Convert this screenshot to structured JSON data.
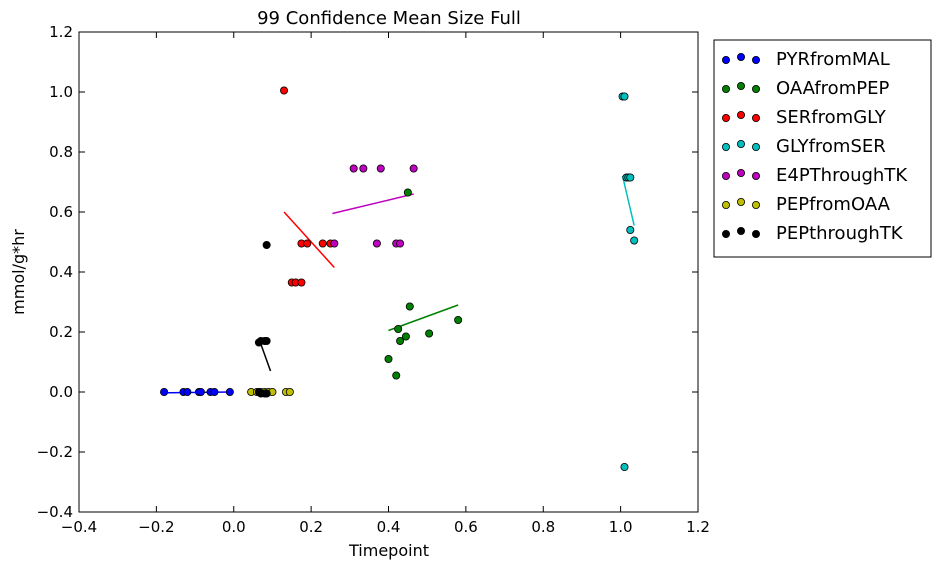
{
  "chart_data": {
    "type": "scatter",
    "title": "99 Confidence Mean Size Full",
    "xlabel": "Timepoint",
    "ylabel": "mmol/g*hr",
    "xlim": [
      -0.4,
      1.2
    ],
    "ylim": [
      -0.4,
      1.2
    ],
    "xticks": [
      "−0.4",
      "−0.2",
      "0.0",
      "0.2",
      "0.4",
      "0.6",
      "0.8",
      "1.0",
      "1.2"
    ],
    "yticks": [
      "−0.4",
      "−0.2",
      "0.0",
      "0.2",
      "0.4",
      "0.6",
      "0.8",
      "1.0",
      "1.2"
    ],
    "grid": false,
    "legend_position": "outside-right",
    "series": [
      {
        "name": "PYRfromMAL",
        "color": "#0000ff",
        "points": [
          [
            -0.18,
            0.0
          ],
          [
            -0.13,
            0.0
          ],
          [
            -0.12,
            0.0
          ],
          [
            -0.09,
            0.0
          ],
          [
            -0.085,
            0.0
          ],
          [
            -0.06,
            0.0
          ],
          [
            -0.05,
            0.0
          ],
          [
            -0.01,
            0.0
          ]
        ],
        "fit": [
          [
            -0.19,
            -0.003
          ],
          [
            -0.01,
            0.0
          ]
        ]
      },
      {
        "name": "OAAfromPEP",
        "color": "#008000",
        "points": [
          [
            0.4,
            0.11
          ],
          [
            0.42,
            0.055
          ],
          [
            0.425,
            0.21
          ],
          [
            0.43,
            0.17
          ],
          [
            0.445,
            0.185
          ],
          [
            0.45,
            0.665
          ],
          [
            0.455,
            0.285
          ],
          [
            0.505,
            0.195
          ],
          [
            0.58,
            0.24
          ]
        ],
        "fit": [
          [
            0.4,
            0.205
          ],
          [
            0.58,
            0.29
          ]
        ]
      },
      {
        "name": "SERfromGLY",
        "color": "#ff0000",
        "points": [
          [
            0.13,
            1.005
          ],
          [
            0.15,
            0.365
          ],
          [
            0.16,
            0.365
          ],
          [
            0.175,
            0.365
          ],
          [
            0.175,
            0.495
          ],
          [
            0.19,
            0.495
          ],
          [
            0.23,
            0.495
          ],
          [
            0.25,
            0.495
          ]
        ],
        "fit": [
          [
            0.13,
            0.6
          ],
          [
            0.26,
            0.415
          ]
        ]
      },
      {
        "name": "GLYfromSER",
        "color": "#00bfbf",
        "points": [
          [
            1.005,
            0.985
          ],
          [
            1.01,
            0.985
          ],
          [
            1.015,
            0.715
          ],
          [
            1.02,
            0.715
          ],
          [
            1.025,
            0.715
          ],
          [
            1.025,
            0.54
          ],
          [
            1.035,
            0.505
          ],
          [
            1.01,
            -0.25
          ]
        ],
        "fit": [
          [
            1.005,
            0.72
          ],
          [
            1.035,
            0.555
          ]
        ]
      },
      {
        "name": "E4PThroughTK",
        "color": "#bf00bf",
        "points": [
          [
            0.31,
            0.745
          ],
          [
            0.335,
            0.745
          ],
          [
            0.38,
            0.745
          ],
          [
            0.465,
            0.745
          ],
          [
            0.26,
            0.495
          ],
          [
            0.37,
            0.495
          ],
          [
            0.42,
            0.495
          ],
          [
            0.43,
            0.495
          ]
        ],
        "fit": [
          [
            0.255,
            0.595
          ],
          [
            0.465,
            0.66
          ]
        ]
      },
      {
        "name": "PEPfromOAA",
        "color": "#bfbf00",
        "points": [
          [
            0.045,
            0.0
          ],
          [
            0.06,
            0.0
          ],
          [
            0.07,
            0.0
          ],
          [
            0.08,
            0.0
          ],
          [
            0.09,
            0.0
          ],
          [
            0.1,
            0.0
          ],
          [
            0.135,
            0.0
          ],
          [
            0.145,
            0.0
          ]
        ],
        "fit": [
          [
            0.06,
            -0.005
          ],
          [
            0.1,
            0.0
          ]
        ]
      },
      {
        "name": "PEPthroughTK",
        "color": "#000000",
        "points": [
          [
            0.085,
            0.49
          ],
          [
            0.065,
            0.165
          ],
          [
            0.07,
            0.17
          ],
          [
            0.08,
            0.17
          ],
          [
            0.085,
            0.17
          ],
          [
            0.065,
            0.0
          ],
          [
            0.07,
            -0.005
          ],
          [
            0.08,
            -0.005
          ],
          [
            0.085,
            -0.005
          ]
        ],
        "fit": [
          [
            0.07,
            0.16
          ],
          [
            0.095,
            0.07
          ]
        ]
      }
    ]
  }
}
